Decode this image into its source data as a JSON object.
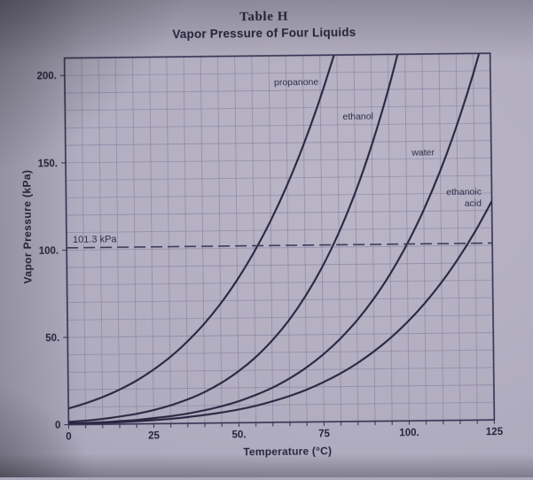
{
  "page": {
    "title": "Table H",
    "subtitle": "Vapor Pressure of Four Liquids"
  },
  "colors": {
    "paper": "#b0acbf",
    "grid": "#867fa0",
    "frame": "#343050",
    "curve": "#282540",
    "dashed_line": "#3e3b5a",
    "text": "#26233b"
  },
  "chart_data": {
    "type": "line",
    "title": "Vapor Pressure of Four Liquids",
    "table_label": "Table H",
    "xlabel": "Temperature (°C)",
    "ylabel": "Vapor Pressure (kPa)",
    "xlim": [
      0,
      125
    ],
    "ylim": [
      0,
      210
    ],
    "grid": {
      "on": true,
      "x_step": 5,
      "y_step": 10
    },
    "x_ticks": [
      {
        "v": 0,
        "label": "0"
      },
      {
        "v": 25,
        "label": "25"
      },
      {
        "v": 50,
        "label": "50."
      },
      {
        "v": 75,
        "label": "75"
      },
      {
        "v": 100,
        "label": "100."
      },
      {
        "v": 125,
        "label": "125"
      }
    ],
    "y_ticks": [
      {
        "v": 0,
        "label": "0"
      },
      {
        "v": 50,
        "label": "50."
      },
      {
        "v": 100,
        "label": "100."
      },
      {
        "v": 150,
        "label": "150."
      },
      {
        "v": 200,
        "label": "200."
      }
    ],
    "reference_line": {
      "value": 101.3,
      "label": "101.3 kPa",
      "style": "dashed"
    },
    "series": [
      {
        "name": "propanone",
        "label": {
          "lines": [
            "propanone"
          ],
          "t": 68,
          "kpa": 193,
          "anchor": "middle"
        },
        "points": [
          [
            0,
            9.3
          ],
          [
            5,
            12.1
          ],
          [
            10,
            15.5
          ],
          [
            15,
            19.7
          ],
          [
            20,
            24.7
          ],
          [
            25,
            30.8
          ],
          [
            30,
            38.0
          ],
          [
            35,
            46.6
          ],
          [
            40,
            56.6
          ],
          [
            45,
            68.3
          ],
          [
            50,
            81.9
          ],
          [
            55,
            97.6
          ],
          [
            60,
            115.5
          ],
          [
            65,
            136.0
          ],
          [
            70,
            159.3
          ],
          [
            75,
            185.6
          ],
          [
            80,
            215.0
          ]
        ]
      },
      {
        "name": "ethanol",
        "label": {
          "lines": [
            "ethanol"
          ],
          "t": 86,
          "kpa": 173,
          "anchor": "middle"
        },
        "points": [
          [
            0,
            1.6
          ],
          [
            5,
            2.2
          ],
          [
            10,
            3.1
          ],
          [
            15,
            4.3
          ],
          [
            20,
            5.8
          ],
          [
            25,
            7.8
          ],
          [
            30,
            10.4
          ],
          [
            35,
            13.7
          ],
          [
            40,
            17.8
          ],
          [
            45,
            23.0
          ],
          [
            50,
            29.4
          ],
          [
            55,
            37.2
          ],
          [
            60,
            46.8
          ],
          [
            65,
            58.3
          ],
          [
            70,
            72.2
          ],
          [
            75,
            88.7
          ],
          [
            80,
            108.3
          ],
          [
            85,
            131.4
          ],
          [
            90,
            158.5
          ],
          [
            95,
            190.0
          ],
          [
            100,
            226.0
          ]
        ]
      },
      {
        "name": "water",
        "label": {
          "lines": [
            "water"
          ],
          "t": 105,
          "kpa": 152,
          "anchor": "middle"
        },
        "points": [
          [
            0,
            0.6
          ],
          [
            5,
            0.9
          ],
          [
            10,
            1.2
          ],
          [
            15,
            1.7
          ],
          [
            20,
            2.3
          ],
          [
            25,
            3.2
          ],
          [
            30,
            4.2
          ],
          [
            35,
            5.6
          ],
          [
            40,
            7.4
          ],
          [
            45,
            9.6
          ],
          [
            50,
            12.3
          ],
          [
            55,
            15.8
          ],
          [
            60,
            19.9
          ],
          [
            65,
            25.0
          ],
          [
            70,
            31.2
          ],
          [
            75,
            38.6
          ],
          [
            80,
            47.4
          ],
          [
            85,
            57.8
          ],
          [
            90,
            70.1
          ],
          [
            95,
            84.5
          ],
          [
            100,
            101.3
          ],
          [
            105,
            120.8
          ],
          [
            110,
            143.2
          ],
          [
            115,
            169.0
          ],
          [
            120,
            198.5
          ],
          [
            125,
            232.0
          ]
        ]
      },
      {
        "name": "ethanoic acid",
        "label": {
          "lines": [
            "ethanoic",
            "acid"
          ],
          "t": 122,
          "kpa": 129,
          "anchor": "end"
        },
        "points": [
          [
            0,
            0.4
          ],
          [
            5,
            0.6
          ],
          [
            10,
            0.8
          ],
          [
            15,
            1.1
          ],
          [
            20,
            1.5
          ],
          [
            25,
            2.1
          ],
          [
            30,
            2.7
          ],
          [
            35,
            3.6
          ],
          [
            40,
            4.7
          ],
          [
            45,
            6.0
          ],
          [
            50,
            7.6
          ],
          [
            55,
            9.6
          ],
          [
            60,
            12.1
          ],
          [
            65,
            15.0
          ],
          [
            70,
            18.5
          ],
          [
            75,
            22.7
          ],
          [
            80,
            27.6
          ],
          [
            85,
            33.4
          ],
          [
            90,
            40.1
          ],
          [
            95,
            47.9
          ],
          [
            100,
            56.9
          ],
          [
            105,
            67.3
          ],
          [
            110,
            79.2
          ],
          [
            115,
            92.7
          ],
          [
            120,
            108.0
          ],
          [
            125,
            125.3
          ]
        ]
      }
    ]
  }
}
